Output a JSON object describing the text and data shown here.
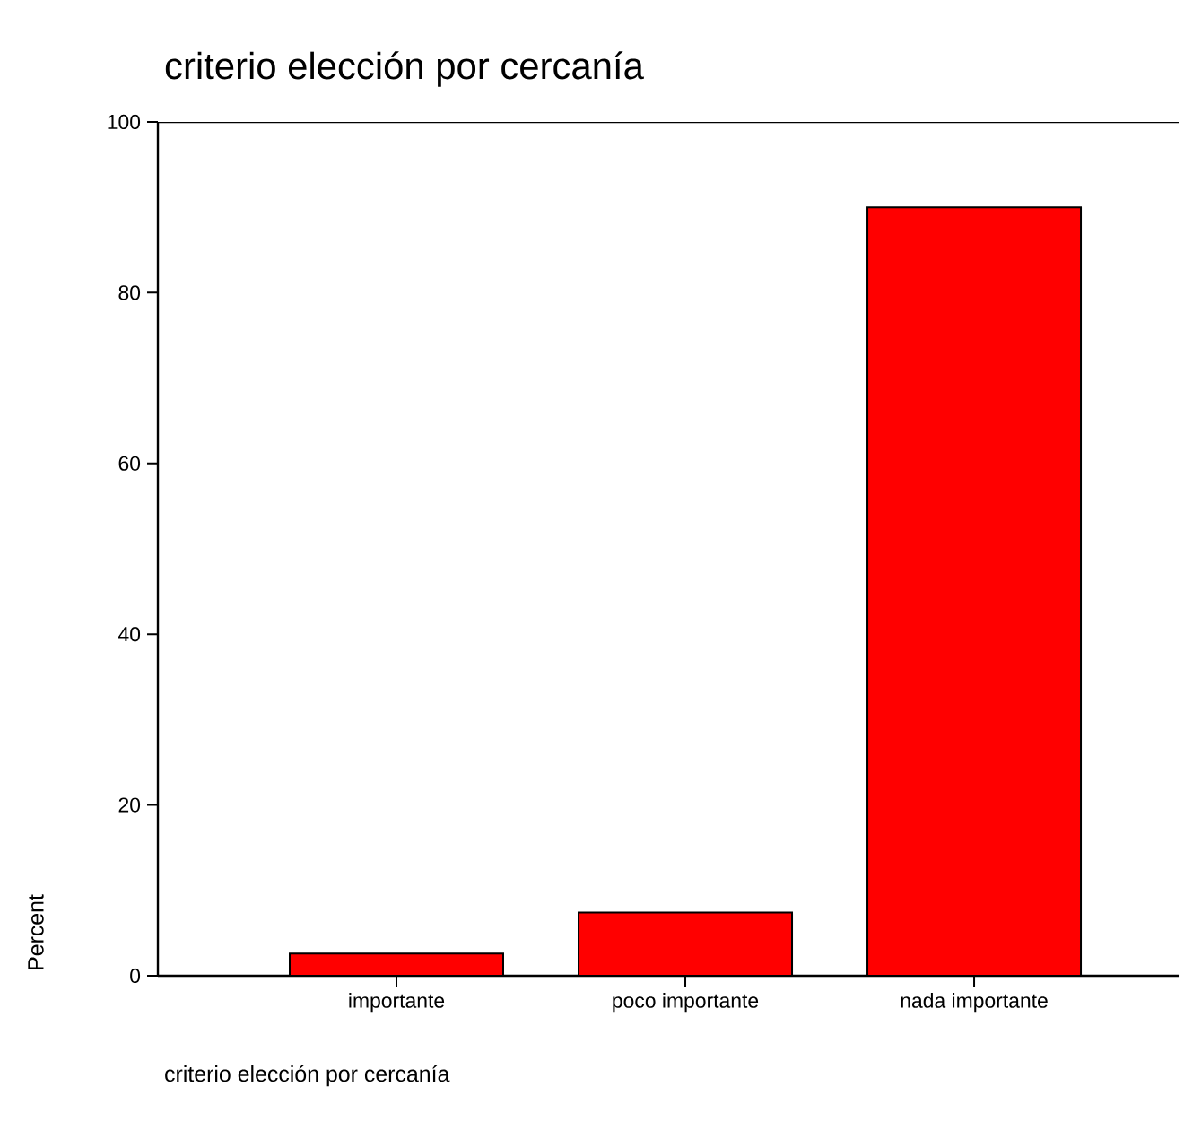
{
  "chart_data": {
    "type": "bar",
    "title": "criterio elección por cercanía",
    "xlabel": "criterio elección por cercanía",
    "ylabel": "Percent",
    "categories": [
      "importante",
      "poco importante",
      "nada importante"
    ],
    "values": [
      2.6,
      7.4,
      90.0
    ],
    "color": "#ff0000",
    "ylim": [
      0,
      100
    ],
    "yticks": [
      0,
      20,
      40,
      60,
      80,
      100
    ],
    "grid": false
  }
}
